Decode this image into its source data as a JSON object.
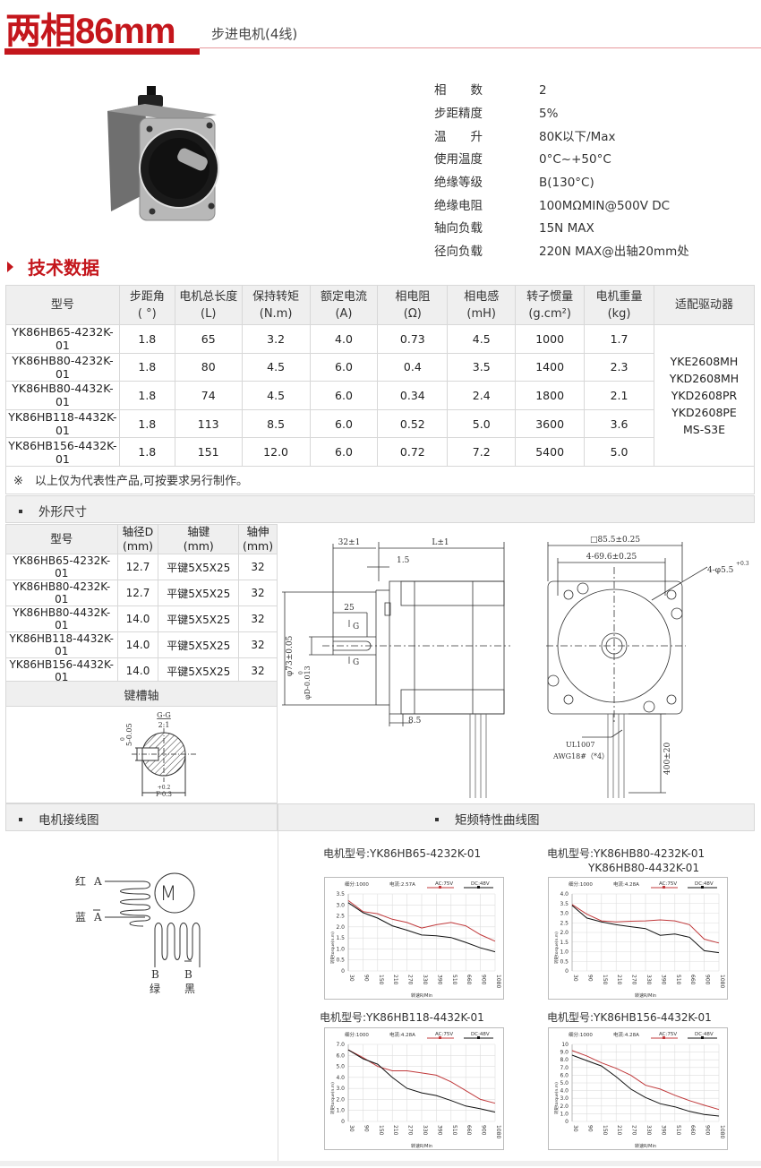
{
  "header": {
    "title": "两相86mm",
    "subtitle": "步进电机(4线)"
  },
  "colors": {
    "brand_red": "#c4161c",
    "ac_curve": "#c0393b",
    "dc_curve": "#111111"
  },
  "specs": [
    {
      "label": "相　　数",
      "value": "2"
    },
    {
      "label": "步距精度",
      "value": "5%"
    },
    {
      "label": "温　　升",
      "value": "80K以下/Max"
    },
    {
      "label": "使用温度",
      "value": "0°C~+50°C"
    },
    {
      "label": "绝缘等级",
      "value": "B(130°C)"
    },
    {
      "label": "绝缘电阻",
      "value": "100MΩMIN@500V DC"
    },
    {
      "label": "轴向负载",
      "value": "15N MAX"
    },
    {
      "label": "径向负载",
      "value": "220N MAX@出轴20mm处"
    }
  ],
  "tech": {
    "heading": "技术数据",
    "headers": [
      [
        "型号",
        ""
      ],
      [
        "步距角",
        "( °)"
      ],
      [
        "电机总长度",
        "(L)"
      ],
      [
        "保持转矩",
        "(N.m)"
      ],
      [
        "额定电流",
        "(A)"
      ],
      [
        "相电阻",
        "(Ω)"
      ],
      [
        "相电感",
        "(mH)"
      ],
      [
        "转子惯量",
        "(g.cm²)"
      ],
      [
        "电机重量",
        "(kg)"
      ],
      [
        "适配驱动器",
        ""
      ]
    ],
    "rows": [
      [
        "YK86HB65-4232K-01",
        "1.8",
        "65",
        "3.2",
        "4.0",
        "0.73",
        "4.5",
        "1000",
        "1.7"
      ],
      [
        "YK86HB80-4232K-01",
        "1.8",
        "80",
        "4.5",
        "6.0",
        "0.4",
        "3.5",
        "1400",
        "2.3"
      ],
      [
        "YK86HB80-4432K-01",
        "1.8",
        "74",
        "4.5",
        "6.0",
        "0.34",
        "2.4",
        "1800",
        "2.1"
      ],
      [
        "YK86HB118-4432K-01",
        "1.8",
        "113",
        "8.5",
        "6.0",
        "0.52",
        "5.0",
        "3600",
        "3.6"
      ],
      [
        "YK86HB156-4432K-01",
        "1.8",
        "151",
        "12.0",
        "6.0",
        "0.72",
        "7.2",
        "5400",
        "5.0"
      ]
    ],
    "drivers": [
      "YKE2608MH",
      "YKD2608MH",
      "YKD2608PR",
      "YKD2608PE",
      "MS-S3E"
    ],
    "note": "※　以上仅为代表性产品,可按要求另行制作。"
  },
  "dimensions": {
    "heading": "外形尺寸",
    "headers": [
      [
        "型号",
        ""
      ],
      [
        "轴径D",
        "(mm)"
      ],
      [
        "轴键",
        "(mm)"
      ],
      [
        "轴伸",
        "(mm)"
      ]
    ],
    "rows": [
      [
        "YK86HB65-4232K-01",
        "12.7",
        "平键5X5X25",
        "32"
      ],
      [
        "YK86HB80-4232K-01",
        "12.7",
        "平键5X5X25",
        "32"
      ],
      [
        "YK86HB80-4432K-01",
        "14.0",
        "平键5X5X25",
        "32"
      ],
      [
        "YK86HB118-4432K-01",
        "14.0",
        "平键5X5X25",
        "32"
      ],
      [
        "YK86HB156-4432K-01",
        "14.0",
        "平键5X5X25",
        "32"
      ]
    ],
    "keyway_heading": "键槽轴",
    "keyway_labels": {
      "section": "G-G",
      "scale": "2:1",
      "width": "5-0.05",
      "width_upper": "0",
      "f": "F-0.3",
      "f_upper": "+0.2"
    },
    "side_labels": {
      "shaft_len": "32±1",
      "body_len": "L±1",
      "flange": "1.5",
      "key_len": "25",
      "g": "G",
      "pilot": "φ73±0.05",
      "shaft_d": "φD-0.013",
      "shaft_d_upper": "0",
      "boss": "8.5"
    },
    "front_labels": {
      "square": "□85.5±0.25",
      "hole_spacing": "4-69.6±0.25",
      "holes": "4-φ5.5",
      "holes_tol": "+0.3",
      "cable": "UL1007",
      "awg": "AWG18#（*4）",
      "lead_len": "400±20"
    }
  },
  "wiring": {
    "heading": "电机接线图",
    "motor": "M",
    "a_color": "红",
    "a": "A",
    "a_bar_color": "蓝",
    "a_bar": "A",
    "b": "B",
    "b_color": "绿",
    "b_bar": "B",
    "b_bar_color": "黑"
  },
  "curves": {
    "heading": "矩频特性曲线图"
  },
  "chart_data": [
    {
      "type": "line",
      "title": "电机型号:YK86HB65-4232K-01",
      "info": {
        "subdivision": "细分:1000",
        "current": "电流:2.57A",
        "ac": "AC:75V",
        "dc": "DC:48V"
      },
      "xlabel": "转速R/Min",
      "ylabel": "转矩torque(n.m)",
      "categories": [
        "30",
        "90",
        "150",
        "210",
        "270",
        "330",
        "390",
        "510",
        "660",
        "900",
        "1080"
      ],
      "ylim": [
        0,
        3.5
      ],
      "yticks": [
        "0",
        "0.5",
        "1.0",
        "1.5",
        "2.0",
        "2.5",
        "3.0",
        "3.5"
      ],
      "grid": true,
      "series": [
        {
          "name": "AC:75V",
          "values": [
            3.2,
            2.7,
            2.6,
            2.35,
            2.2,
            1.95,
            2.1,
            2.2,
            2.05,
            1.65,
            1.35
          ]
        },
        {
          "name": "DC:48V",
          "values": [
            3.1,
            2.65,
            2.4,
            2.05,
            1.85,
            1.63,
            1.6,
            1.52,
            1.3,
            1.05,
            0.87
          ]
        }
      ]
    },
    {
      "type": "line",
      "title": "电机型号:YK86HB80-4232K-01",
      "title2": "YK86HB80-4432K-01",
      "info": {
        "subdivision": "细分:1000",
        "current": "电流:4.28A",
        "ac": "AC:75V",
        "dc": "DC:48V"
      },
      "xlabel": "转速R/Min",
      "ylabel": "转矩torque(n.m)",
      "categories": [
        "30",
        "90",
        "150",
        "210",
        "270",
        "330",
        "390",
        "510",
        "660",
        "900",
        "1080"
      ],
      "ylim": [
        0,
        4.0
      ],
      "yticks": [
        "0",
        "0.5",
        "1.0",
        "1.5",
        "2.0",
        "2.5",
        "3.0",
        "3.5",
        "4.0"
      ],
      "grid": true,
      "series": [
        {
          "name": "AC:75V",
          "values": [
            3.45,
            2.95,
            2.6,
            2.55,
            2.58,
            2.6,
            2.65,
            2.6,
            2.4,
            1.65,
            1.45
          ]
        },
        {
          "name": "DC:48V",
          "values": [
            3.4,
            2.75,
            2.55,
            2.4,
            2.3,
            2.2,
            1.85,
            1.92,
            1.75,
            1.05,
            0.95
          ]
        }
      ]
    },
    {
      "type": "line",
      "title": "电机型号:YK86HB118-4432K-01",
      "info": {
        "subdivision": "细分:1000",
        "current": "电流:4.28A",
        "ac": "AC:75V",
        "dc": "DC:48V"
      },
      "xlabel": "转速R/Min",
      "ylabel": "转矩torque(n.m)",
      "categories": [
        "30",
        "90",
        "150",
        "210",
        "270",
        "330",
        "390",
        "510",
        "660",
        "900",
        "1080"
      ],
      "ylim": [
        0,
        7.0
      ],
      "yticks": [
        "0",
        "1.0",
        "2.0",
        "3.0",
        "4.0",
        "5.0",
        "6.0",
        "7.0"
      ],
      "grid": true,
      "series": [
        {
          "name": "AC:75V",
          "values": [
            6.5,
            5.8,
            5.0,
            4.6,
            4.6,
            4.4,
            4.2,
            3.6,
            2.8,
            2.0,
            1.65
          ]
        },
        {
          "name": "DC:48V",
          "values": [
            6.5,
            5.7,
            5.2,
            4.0,
            3.0,
            2.6,
            2.35,
            1.9,
            1.4,
            1.15,
            0.85
          ]
        }
      ]
    },
    {
      "type": "line",
      "title": "电机型号:YK86HB156-4432K-01",
      "info": {
        "subdivision": "细分:1000",
        "current": "电流:4.28A",
        "ac": "AC:75V",
        "dc": "DC:48V"
      },
      "xlabel": "转速R/Min",
      "ylabel": "转矩torque(n.m)",
      "categories": [
        "30",
        "90",
        "150",
        "210",
        "270",
        "330",
        "390",
        "510",
        "660",
        "900",
        "1080"
      ],
      "ylim": [
        0,
        10
      ],
      "yticks": [
        "0",
        "1.0",
        "2.0",
        "3.0",
        "4.0",
        "5.0",
        "6.0",
        "7.0",
        "8.0",
        "9.0",
        "10"
      ],
      "grid": true,
      "series": [
        {
          "name": "AC:75V",
          "values": [
            9.2,
            8.5,
            7.6,
            6.9,
            6.0,
            4.7,
            4.2,
            3.4,
            2.7,
            2.1,
            1.55
          ]
        },
        {
          "name": "DC:48V",
          "values": [
            8.6,
            7.9,
            7.2,
            5.8,
            4.2,
            3.1,
            2.3,
            1.9,
            1.3,
            0.9,
            0.7
          ]
        }
      ]
    }
  ]
}
